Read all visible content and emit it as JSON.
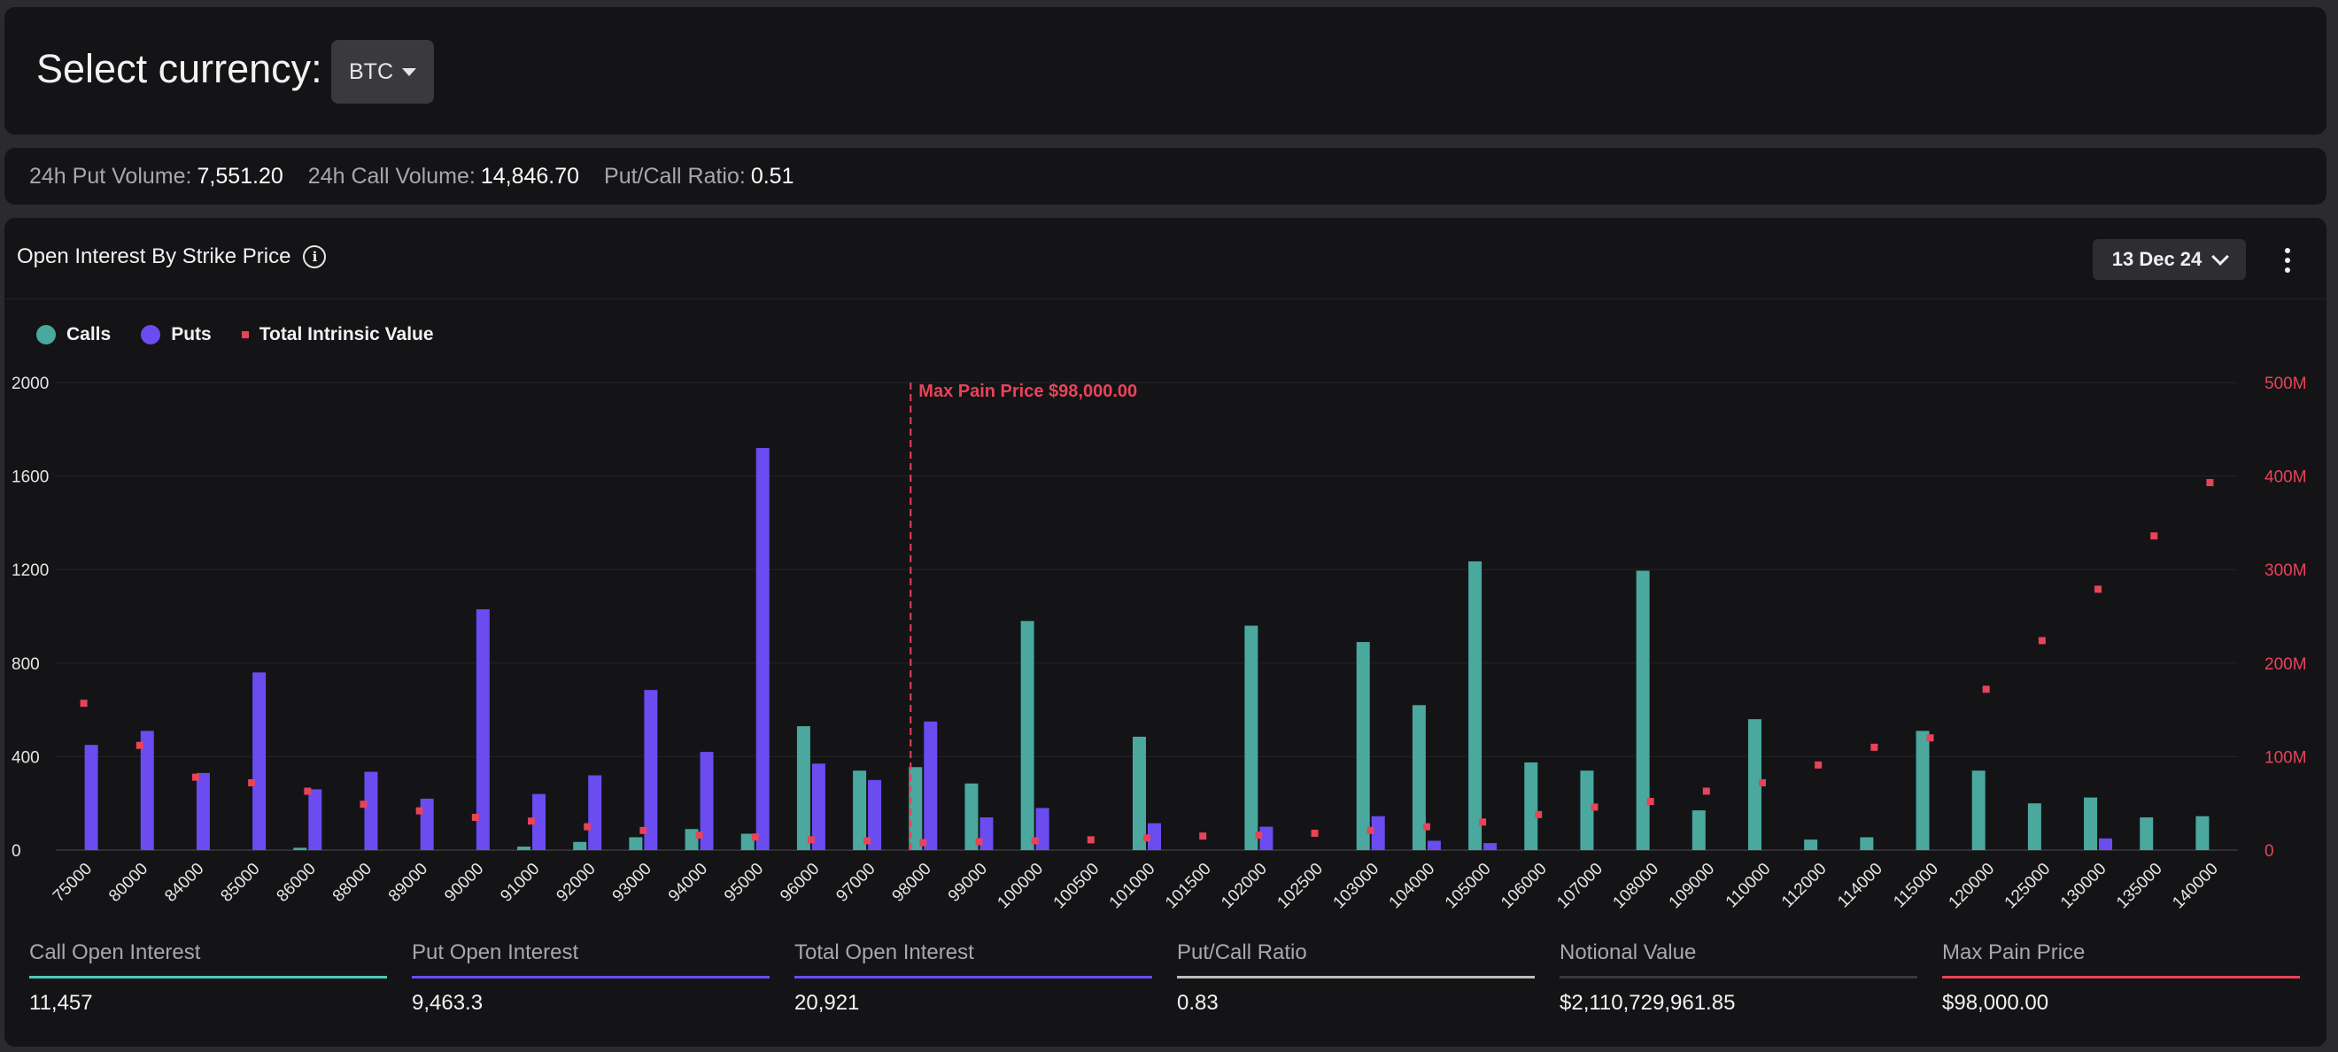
{
  "header": {
    "title": "Select currency:",
    "currency": "BTC"
  },
  "volume": {
    "put_label": "24h Put Volume:",
    "put_value": "7,551.20",
    "call_label": "24h Call Volume:",
    "call_value": "14,846.70",
    "ratio_label": "Put/Call Ratio:",
    "ratio_value": "0.51"
  },
  "chart_panel": {
    "title": "Open Interest By Strike Price",
    "expiry": "13 Dec 24"
  },
  "legend": {
    "calls": "Calls",
    "puts": "Puts",
    "tiv": "Total Intrinsic Value"
  },
  "colors": {
    "calls": "#4aa89e",
    "puts": "#6a4cf0",
    "tiv": "#e8435a",
    "max_pain": "#e8435a"
  },
  "chart_data": {
    "type": "bar",
    "categories": [
      "75000",
      "80000",
      "84000",
      "85000",
      "86000",
      "88000",
      "89000",
      "90000",
      "91000",
      "92000",
      "93000",
      "94000",
      "95000",
      "96000",
      "97000",
      "98000",
      "99000",
      "100000",
      "100500",
      "101000",
      "101500",
      "102000",
      "102500",
      "103000",
      "104000",
      "105000",
      "106000",
      "107000",
      "108000",
      "109000",
      "110000",
      "112000",
      "114000",
      "115000",
      "120000",
      "125000",
      "130000",
      "135000",
      "140000"
    ],
    "series": [
      {
        "name": "Calls",
        "axis": "left",
        "values": [
          0,
          0,
          0,
          0,
          10,
          0,
          0,
          0,
          15,
          35,
          55,
          90,
          70,
          530,
          340,
          355,
          285,
          980,
          0,
          485,
          0,
          960,
          0,
          890,
          620,
          1235,
          375,
          340,
          1195,
          170,
          560,
          45,
          55,
          510,
          340,
          200,
          225,
          140,
          145
        ]
      },
      {
        "name": "Puts",
        "axis": "left",
        "values": [
          450,
          510,
          330,
          760,
          260,
          335,
          220,
          1030,
          240,
          320,
          685,
          420,
          1720,
          370,
          300,
          550,
          140,
          180,
          0,
          115,
          0,
          100,
          0,
          145,
          40,
          30,
          0,
          0,
          0,
          0,
          0,
          0,
          0,
          0,
          0,
          0,
          50,
          0,
          0
        ]
      },
      {
        "name": "Total Intrinsic Value",
        "axis": "right",
        "type": "scatter",
        "values": [
          157,
          112,
          78,
          72,
          63,
          49,
          42,
          35,
          31,
          25,
          21,
          16,
          14,
          11,
          10,
          8,
          9,
          10,
          11,
          13,
          15,
          16,
          18,
          21,
          25,
          30,
          38,
          46,
          52,
          63,
          72,
          91,
          110,
          120,
          172,
          224,
          279,
          336,
          393
        ]
      }
    ],
    "y_left": {
      "ticks": [
        0,
        400,
        800,
        1200,
        1600,
        2000
      ],
      "range": [
        0,
        2000
      ]
    },
    "y_right": {
      "ticks": [
        "0",
        "100M",
        "200M",
        "300M",
        "400M",
        "500M"
      ],
      "range": [
        0,
        500
      ],
      "unit": "M"
    },
    "annotation": {
      "label": "Max Pain Price $98,000.00",
      "category": "98000"
    }
  },
  "metrics": [
    {
      "label": "Call Open Interest",
      "value": "11,457",
      "color": "#4ec9b7"
    },
    {
      "label": "Put Open Interest",
      "value": "9,463.3",
      "color": "#6a4cf0"
    },
    {
      "label": "Total Open Interest",
      "value": "20,921",
      "color": "#6a4cf0"
    },
    {
      "label": "Put/Call Ratio",
      "value": "0.83",
      "color": "#bdbdbd"
    },
    {
      "label": "Notional Value",
      "value": "$2,110,729,961.85",
      "color": "#3a3a3e"
    },
    {
      "label": "Max Pain Price",
      "value": "$98,000.00",
      "color": "#e8435a"
    }
  ]
}
